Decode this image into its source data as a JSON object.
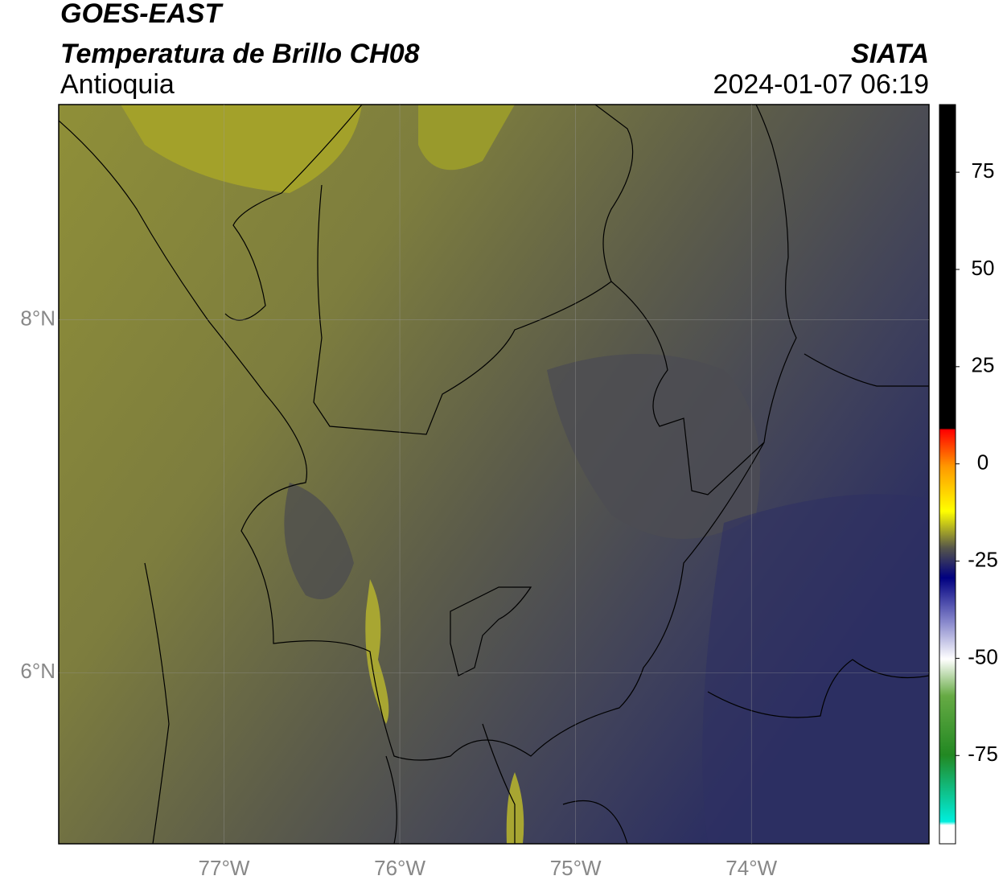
{
  "header": {
    "title": "GOES-EAST",
    "subtitle": "Temperatura de Brillo CH08",
    "region": "Antioquia",
    "source": "SIATA",
    "datetime": "2024-01-07 06:19"
  },
  "map": {
    "lon_range": [
      -77.94,
      -72.99
    ],
    "lat_range": [
      5.03,
      9.22
    ],
    "lat_ticks": [
      {
        "value": 8,
        "label": "8°N"
      },
      {
        "value": 6,
        "label": "6°N"
      }
    ],
    "lon_ticks": [
      {
        "value": -77,
        "label": "77°W"
      },
      {
        "value": -76,
        "label": "76°W"
      },
      {
        "value": -75,
        "label": "75°W"
      },
      {
        "value": -74,
        "label": "74°W"
      }
    ],
    "grid": true
  },
  "colorbar": {
    "range": [
      -97.7,
      92.4
    ],
    "ticks": [
      75,
      50,
      25,
      0,
      -25,
      -50,
      -75
    ]
  }
}
